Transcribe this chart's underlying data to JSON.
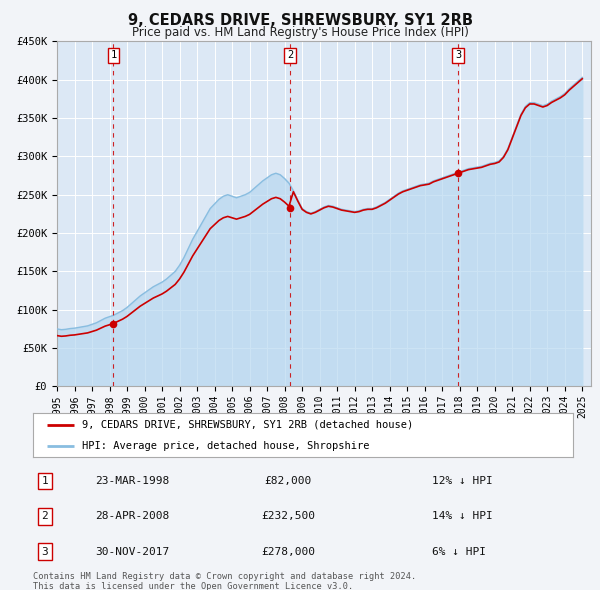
{
  "title": "9, CEDARS DRIVE, SHREWSBURY, SY1 2RB",
  "subtitle": "Price paid vs. HM Land Registry's House Price Index (HPI)",
  "background_color": "#f2f4f8",
  "plot_bg_color": "#dce8f5",
  "grid_color": "#ffffff",
  "ylim": [
    0,
    450000
  ],
  "yticks": [
    0,
    50000,
    100000,
    150000,
    200000,
    250000,
    300000,
    350000,
    400000,
    450000
  ],
  "ytick_labels": [
    "£0",
    "£50K",
    "£100K",
    "£150K",
    "£200K",
    "£250K",
    "£300K",
    "£350K",
    "£400K",
    "£450K"
  ],
  "xlim_start": 1995.0,
  "xlim_end": 2025.5,
  "xticks": [
    1995,
    1996,
    1997,
    1998,
    1999,
    2000,
    2001,
    2002,
    2003,
    2004,
    2005,
    2006,
    2007,
    2008,
    2009,
    2010,
    2011,
    2012,
    2013,
    2014,
    2015,
    2016,
    2017,
    2018,
    2019,
    2020,
    2021,
    2022,
    2023,
    2024,
    2025
  ],
  "sale_color": "#cc0000",
  "hpi_color": "#89bde0",
  "hpi_fill_color": "#b8d8f0",
  "marker_color": "#cc0000",
  "vline_color": "#cc0000",
  "purchases": [
    {
      "num": 1,
      "date_num": 1998.22,
      "price": 82000,
      "hpi_pct": "12%",
      "date_str": "23-MAR-1998",
      "price_str": "£82,000"
    },
    {
      "num": 2,
      "date_num": 2008.32,
      "price": 232500,
      "hpi_pct": "14%",
      "date_str": "28-APR-2008",
      "price_str": "£232,500"
    },
    {
      "num": 3,
      "date_num": 2017.91,
      "price": 278000,
      "hpi_pct": "6%",
      "date_str": "30-NOV-2017",
      "price_str": "£278,000"
    }
  ],
  "legend_label_red": "9, CEDARS DRIVE, SHREWSBURY, SY1 2RB (detached house)",
  "legend_label_blue": "HPI: Average price, detached house, Shropshire",
  "footer_line1": "Contains HM Land Registry data © Crown copyright and database right 2024.",
  "footer_line2": "This data is licensed under the Open Government Licence v3.0.",
  "hpi_x": [
    1995.0,
    1995.25,
    1995.5,
    1995.75,
    1996.0,
    1996.25,
    1996.5,
    1996.75,
    1997.0,
    1997.25,
    1997.5,
    1997.75,
    1998.0,
    1998.25,
    1998.5,
    1998.75,
    1999.0,
    1999.25,
    1999.5,
    1999.75,
    2000.0,
    2000.25,
    2000.5,
    2000.75,
    2001.0,
    2001.25,
    2001.5,
    2001.75,
    2002.0,
    2002.25,
    2002.5,
    2002.75,
    2003.0,
    2003.25,
    2003.5,
    2003.75,
    2004.0,
    2004.25,
    2004.5,
    2004.75,
    2005.0,
    2005.25,
    2005.5,
    2005.75,
    2006.0,
    2006.25,
    2006.5,
    2006.75,
    2007.0,
    2007.25,
    2007.5,
    2007.75,
    2008.0,
    2008.25,
    2008.5,
    2008.75,
    2009.0,
    2009.25,
    2009.5,
    2009.75,
    2010.0,
    2010.25,
    2010.5,
    2010.75,
    2011.0,
    2011.25,
    2011.5,
    2011.75,
    2012.0,
    2012.25,
    2012.5,
    2012.75,
    2013.0,
    2013.25,
    2013.5,
    2013.75,
    2014.0,
    2014.25,
    2014.5,
    2014.75,
    2015.0,
    2015.25,
    2015.5,
    2015.75,
    2016.0,
    2016.25,
    2016.5,
    2016.75,
    2017.0,
    2017.25,
    2017.5,
    2017.75,
    2018.0,
    2018.25,
    2018.5,
    2018.75,
    2019.0,
    2019.25,
    2019.5,
    2019.75,
    2020.0,
    2020.25,
    2020.5,
    2020.75,
    2021.0,
    2021.25,
    2021.5,
    2021.75,
    2022.0,
    2022.25,
    2022.5,
    2022.75,
    2023.0,
    2023.25,
    2023.5,
    2023.75,
    2024.0,
    2024.25,
    2024.5,
    2024.75,
    2025.0
  ],
  "hpi_y": [
    75000,
    74000,
    74500,
    75500,
    76000,
    77000,
    78000,
    79000,
    81000,
    83000,
    86000,
    89000,
    91000,
    93000,
    96000,
    99000,
    103000,
    108000,
    113000,
    118000,
    122000,
    126000,
    130000,
    133000,
    136000,
    140000,
    145000,
    150000,
    158000,
    168000,
    180000,
    192000,
    202000,
    212000,
    222000,
    232000,
    238000,
    244000,
    248000,
    250000,
    248000,
    246000,
    248000,
    250000,
    253000,
    258000,
    263000,
    268000,
    272000,
    276000,
    278000,
    276000,
    271000,
    265000,
    255000,
    243000,
    232000,
    228000,
    226000,
    228000,
    231000,
    234000,
    236000,
    235000,
    233000,
    231000,
    230000,
    229000,
    228000,
    229000,
    231000,
    232000,
    232000,
    234000,
    237000,
    240000,
    244000,
    248000,
    252000,
    255000,
    257000,
    259000,
    261000,
    263000,
    264000,
    265000,
    268000,
    270000,
    272000,
    274000,
    276000,
    278000,
    280000,
    282000,
    284000,
    285000,
    286000,
    287000,
    289000,
    291000,
    292000,
    294000,
    300000,
    310000,
    325000,
    340000,
    355000,
    365000,
    370000,
    370000,
    368000,
    366000,
    368000,
    372000,
    375000,
    378000,
    382000,
    388000,
    393000,
    398000,
    403000
  ]
}
